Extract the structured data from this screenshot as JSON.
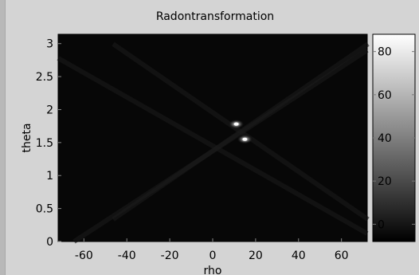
{
  "chart_data": {
    "type": "heatmap",
    "title": "Radontransformation",
    "xlabel": "rho",
    "ylabel": "theta",
    "xlim": [
      -72,
      72
    ],
    "ylim": [
      0,
      3.1416
    ],
    "x_ticks": [
      -60,
      -40,
      -20,
      0,
      20,
      40,
      60
    ],
    "y_ticks": [
      0,
      0.5,
      1,
      1.5,
      2,
      2.5,
      3
    ],
    "x_tick_labels": [
      "-60",
      "-40",
      "-20",
      "0",
      "20",
      "40",
      "60"
    ],
    "y_tick_labels": [
      "0",
      "0.5",
      "1",
      "1.5",
      "2",
      "2.5",
      "3"
    ],
    "colorbar": {
      "range": [
        -8,
        88
      ],
      "ticks": [
        0,
        20,
        40,
        60,
        80
      ],
      "tick_labels": [
        "0",
        "20",
        "40",
        "60",
        "80"
      ],
      "colormap": "gray"
    },
    "background_level": 2,
    "peaks": [
      {
        "rho": 11,
        "theta": 1.78,
        "value": 70
      },
      {
        "rho": 15,
        "theta": 1.55,
        "value": 88
      }
    ]
  }
}
